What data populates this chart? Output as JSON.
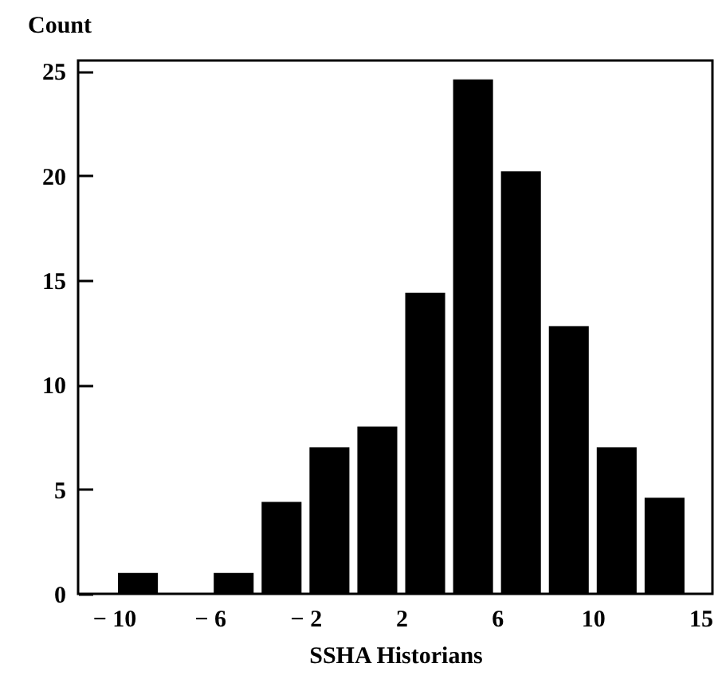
{
  "chart_data": {
    "type": "histogram",
    "xlabel": "SSHA Historians",
    "ylabel": "Count",
    "color": "#000000",
    "bins": [
      -10,
      -8,
      -6,
      -4,
      -2,
      0,
      2,
      4,
      6,
      8,
      10,
      12,
      14
    ],
    "values": [
      1,
      0,
      1,
      4.4,
      7,
      8,
      14.4,
      24.6,
      20.2,
      12.8,
      7,
      4.6
    ],
    "xlim": [
      -11.5,
      15
    ],
    "ylim": [
      0,
      25.5
    ],
    "xticks": [
      {
        "value": -10,
        "label": "− 10"
      },
      {
        "value": -6,
        "label": "− 6"
      },
      {
        "value": -2,
        "label": "− 2"
      },
      2,
      6,
      10,
      15
    ],
    "yticks": [
      0,
      5,
      10,
      15,
      20,
      25
    ]
  }
}
